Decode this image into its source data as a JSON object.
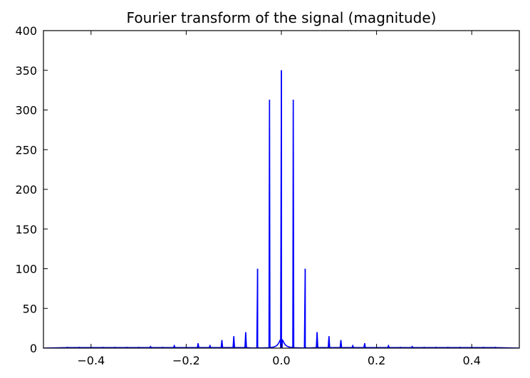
{
  "chart_data": {
    "type": "line",
    "title": "Fourier transform of the signal (magnitude)",
    "xlabel": "",
    "ylabel": "",
    "xlim": [
      -0.5,
      0.5
    ],
    "ylim": [
      0,
      400
    ],
    "grid": false,
    "line_color": "#0000ff",
    "x_ticks": [
      -0.4,
      -0.2,
      0.0,
      0.2,
      0.4
    ],
    "x_tick_labels": [
      "−0.4",
      "−0.2",
      "0.0",
      "0.2",
      "0.4"
    ],
    "y_ticks": [
      0,
      50,
      100,
      150,
      200,
      250,
      300,
      350,
      400
    ],
    "y_tick_labels": [
      "0",
      "50",
      "100",
      "150",
      "200",
      "250",
      "300",
      "350",
      "400"
    ],
    "peaks": [
      {
        "x": -0.45,
        "y": 1
      },
      {
        "x": -0.425,
        "y": 1
      },
      {
        "x": -0.4,
        "y": 1
      },
      {
        "x": -0.375,
        "y": 1
      },
      {
        "x": -0.35,
        "y": 1
      },
      {
        "x": -0.325,
        "y": 1
      },
      {
        "x": -0.3,
        "y": 1
      },
      {
        "x": -0.275,
        "y": 2
      },
      {
        "x": -0.25,
        "y": 1
      },
      {
        "x": -0.225,
        "y": 3
      },
      {
        "x": -0.2,
        "y": 1
      },
      {
        "x": -0.175,
        "y": 6
      },
      {
        "x": -0.15,
        "y": 3
      },
      {
        "x": -0.125,
        "y": 10
      },
      {
        "x": -0.1,
        "y": 15
      },
      {
        "x": -0.075,
        "y": 20
      },
      {
        "x": -0.05,
        "y": 100
      },
      {
        "x": -0.025,
        "y": 313
      },
      {
        "x": 0.0,
        "y": 350
      },
      {
        "x": 0.025,
        "y": 313
      },
      {
        "x": 0.05,
        "y": 100
      },
      {
        "x": 0.075,
        "y": 20
      },
      {
        "x": 0.1,
        "y": 15
      },
      {
        "x": 0.125,
        "y": 10
      },
      {
        "x": 0.15,
        "y": 3
      },
      {
        "x": 0.175,
        "y": 6
      },
      {
        "x": 0.2,
        "y": 1
      },
      {
        "x": 0.225,
        "y": 3
      },
      {
        "x": 0.25,
        "y": 1
      },
      {
        "x": 0.275,
        "y": 2
      },
      {
        "x": 0.3,
        "y": 1
      },
      {
        "x": 0.325,
        "y": 1
      },
      {
        "x": 0.35,
        "y": 1
      },
      {
        "x": 0.375,
        "y": 1
      },
      {
        "x": 0.4,
        "y": 1
      },
      {
        "x": 0.425,
        "y": 1
      },
      {
        "x": 0.45,
        "y": 1
      }
    ]
  }
}
